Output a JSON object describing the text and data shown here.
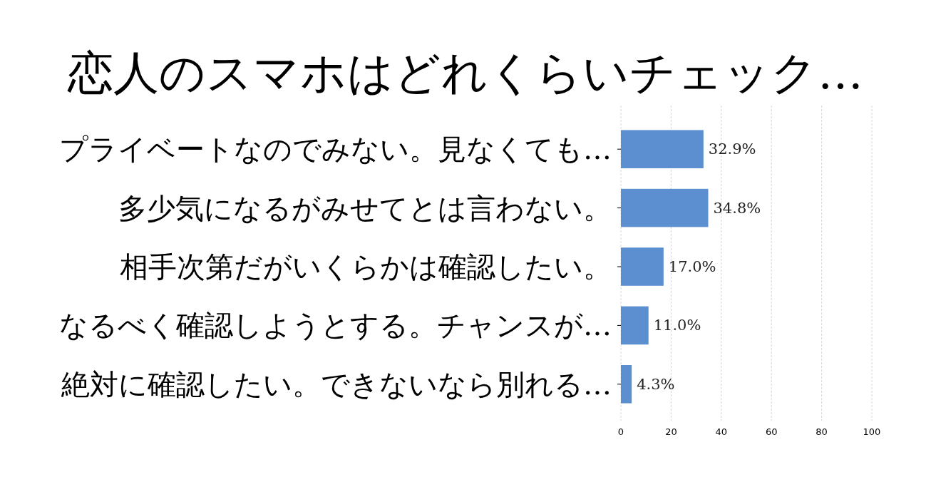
{
  "chart_data": {
    "type": "bar",
    "orientation": "horizontal",
    "title": "恋人のスマホはどれくらいチェック…",
    "categories": [
      "プライベートなのでみない。見なくても…",
      "多少気になるがみせてとは言わない。",
      "相手次第だがいくらかは確認したい。",
      "なるべく確認しようとする。チャンスが…",
      "絶対に確認したい。できないなら別れる…"
    ],
    "values": [
      32.9,
      34.8,
      17.0,
      11.0,
      4.3
    ],
    "value_labels": [
      "32.9%",
      "34.8%",
      "17.0%",
      "11.0%",
      "4.3%"
    ],
    "color": "#5b8fd0",
    "xlim": [
      0,
      100
    ],
    "xticks": [
      0,
      20,
      40,
      60,
      80,
      100
    ],
    "grid": "x"
  }
}
